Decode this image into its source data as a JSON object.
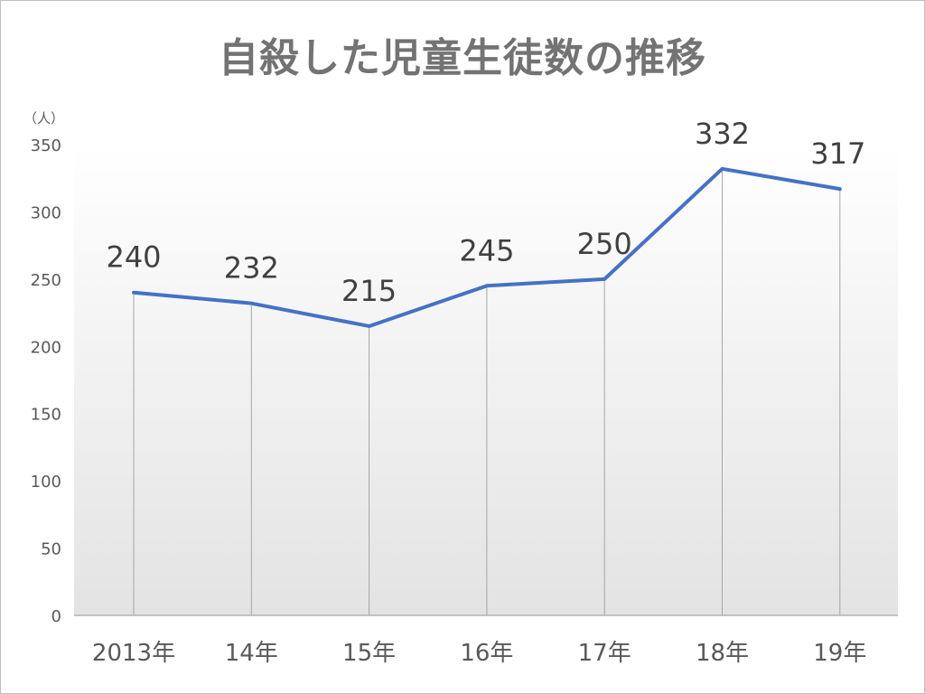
{
  "chart_data": {
    "type": "line",
    "title": "自殺した児童生徒数の推移",
    "unit_label": "（人）",
    "categories": [
      "2013年",
      "14年",
      "15年",
      "16年",
      "17年",
      "18年",
      "19年"
    ],
    "series": [
      {
        "values": [
          240,
          232,
          215,
          245,
          250,
          332,
          317
        ],
        "color": "#4472c4"
      }
    ],
    "data_labels": [
      "240",
      "232",
      "215",
      "245",
      "250",
      "332",
      "317"
    ],
    "y_ticks": [
      "0",
      "50",
      "100",
      "150",
      "200",
      "250",
      "300",
      "350"
    ],
    "ylim": [
      0,
      350
    ],
    "grid": false,
    "drop_lines": true,
    "legend": "none"
  }
}
